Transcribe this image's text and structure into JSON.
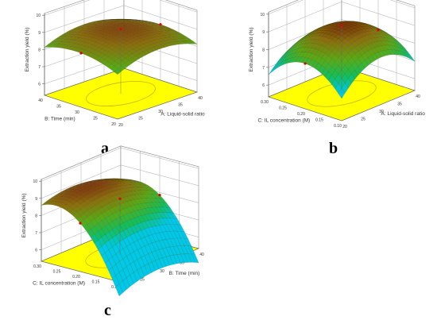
{
  "figure": {
    "panels": [
      {
        "letter": "a"
      },
      {
        "letter": "b"
      },
      {
        "letter": "c"
      }
    ]
  },
  "chart_data": [
    {
      "type": "surface",
      "panel": "a",
      "zlabel": "Extraction yield (%)",
      "xlabel": "A: Liquid-solid ratio",
      "ylabel": "B: Time (min)",
      "xticks": [
        "20",
        "25",
        "30",
        "35",
        "40"
      ],
      "yticks": [
        "20",
        "25",
        "30",
        "35",
        "40"
      ],
      "zticks": [
        "6",
        "7",
        "8",
        "9",
        "10"
      ],
      "xlim": [
        20,
        40
      ],
      "ylim": [
        20,
        40
      ],
      "zlim": [
        6,
        10
      ],
      "surface": {
        "peak_x": 30,
        "peak_y": 30,
        "peak_z": 9.2,
        "ax": 0.55,
        "ay": 0.45,
        "axy": 0.05,
        "bx": 0.05,
        "by": 0.05
      },
      "floor_color": "#ffff00",
      "grid": true
    },
    {
      "type": "surface",
      "panel": "b",
      "zlabel": "Extraction yield (%)",
      "xlabel": "A: Liquid-solid ratio",
      "ylabel": "C: IL concentration (M)",
      "xticks": [
        "20",
        "25",
        "30",
        "35",
        "40"
      ],
      "yticks": [
        "0.10",
        "0.15",
        "0.20",
        "0.25",
        "0.30"
      ],
      "zticks": [
        "6",
        "7",
        "8",
        "9",
        "10"
      ],
      "xlim": [
        20,
        40
      ],
      "ylim": [
        0.1,
        0.3
      ],
      "zlim": [
        6,
        10
      ],
      "surface": {
        "peak_x": 30,
        "peak_y": 0.2,
        "peak_z": 9.3,
        "ax": 1.2,
        "ay": 1.3,
        "axy": 0.1,
        "bx": 0.1,
        "by": -0.1
      },
      "floor_color": "#ffff00",
      "grid": true
    },
    {
      "type": "surface",
      "panel": "c",
      "zlabel": "Extraction yield (%)",
      "xlabel": "B: Time (min)",
      "ylabel": "C: IL concentration (M)",
      "xticks": [
        "20",
        "25",
        "30",
        "35",
        "40"
      ],
      "yticks": [
        "0.10",
        "0.15",
        "0.20",
        "0.25",
        "0.30"
      ],
      "zticks": [
        "6",
        "7",
        "8",
        "9",
        "10"
      ],
      "xlim": [
        20,
        40
      ],
      "ylim": [
        0.1,
        0.3
      ],
      "zlim": [
        6,
        10
      ],
      "surface": {
        "peak_x": 28,
        "peak_y": 0.26,
        "peak_z": 9.3,
        "ax": 0.6,
        "ay": 1.6,
        "axy": 0.15,
        "bx": 0.0,
        "by": 0.0
      },
      "floor_color": "#ffff00",
      "grid": true
    }
  ]
}
